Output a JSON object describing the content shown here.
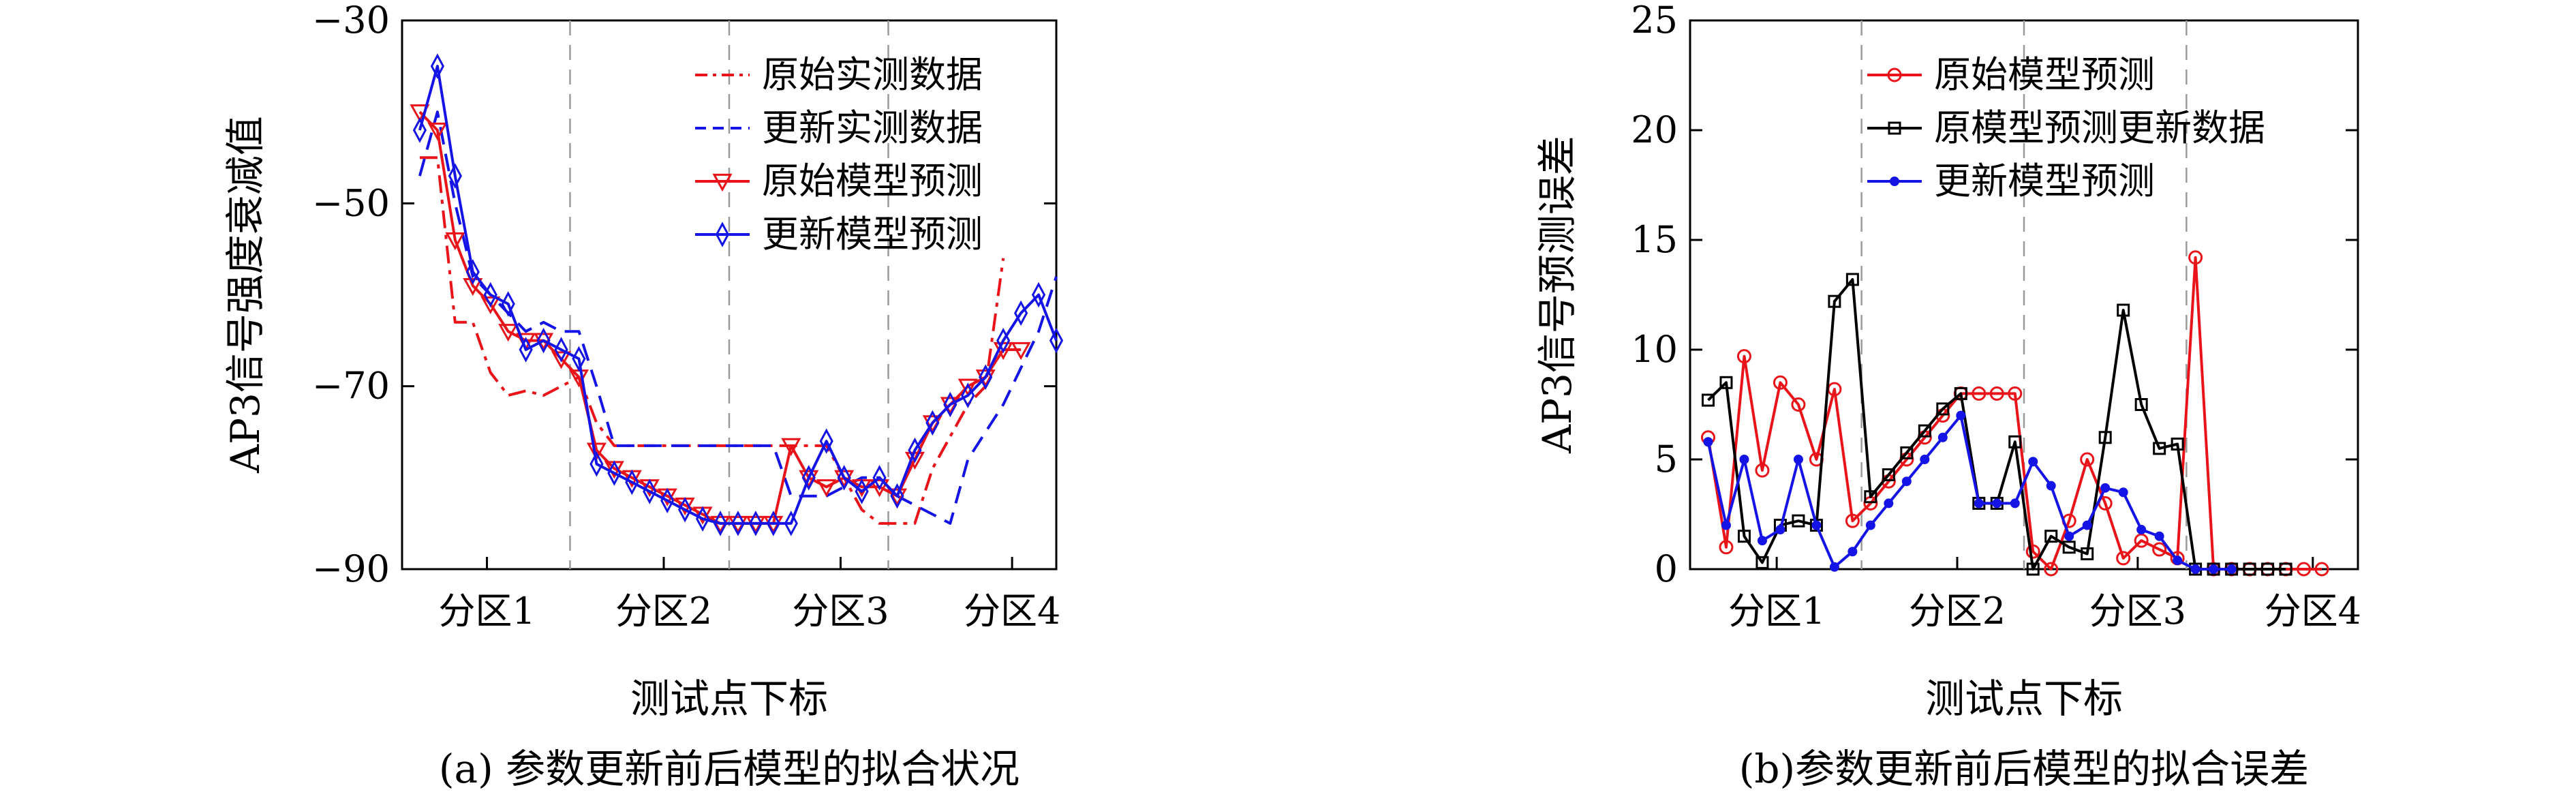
{
  "chart_data": [
    {
      "type": "line",
      "caption": "(a) 参数更新前后模型的拟合状况",
      "xlabel": "测试点下标",
      "ylabel": "AP3信号强度衰减值",
      "ylim": [
        -90,
        -30
      ],
      "yticks": [
        -30,
        -50,
        -70,
        -90
      ],
      "xlim": [
        0,
        37
      ],
      "zone_labels": [
        "分区1",
        "分区2",
        "分区3",
        "分区4"
      ],
      "zone_label_x": [
        4.8,
        14.8,
        24.8,
        34.5
      ],
      "zone_dividers": [
        9,
        18,
        27
      ],
      "legend_position": "top-right",
      "series": [
        {
          "name": "原始实测数据",
          "color": "#e8141a",
          "dash": "dashdot",
          "marker": "none",
          "x": [
            1,
            2,
            3,
            4,
            5,
            6,
            7,
            8,
            9,
            10,
            11,
            12,
            13,
            14,
            15,
            16,
            17,
            18,
            19,
            20,
            21,
            22,
            23,
            24,
            25,
            26,
            27,
            28,
            29,
            30,
            31,
            32,
            33,
            34
          ],
          "y": [
            -45,
            -45,
            -63,
            -63,
            -68.5,
            -71,
            -70.5,
            -71,
            -70,
            -69,
            -74,
            -76.5,
            -76.5,
            -76.5,
            -76.5,
            -76.5,
            -76.5,
            -76.5,
            -76.5,
            -76.5,
            -76.5,
            -76.5,
            -76.5,
            -76.5,
            -80,
            -83.5,
            -85,
            -85,
            -85,
            -79,
            -75.5,
            -72,
            -70,
            -56
          ]
        },
        {
          "name": "更新实测数据",
          "color": "#1414e6",
          "dash": "dashed",
          "marker": "none",
          "x": [
            1,
            2,
            3,
            4,
            5,
            6,
            7,
            8,
            9,
            10,
            11,
            12,
            13,
            14,
            15,
            16,
            17,
            18,
            19,
            20,
            21,
            22,
            23,
            24,
            25,
            26,
            27,
            28,
            29,
            30,
            31,
            32,
            33,
            34,
            35,
            36,
            37
          ],
          "y": [
            -47,
            -40,
            -50,
            -58,
            -60,
            -62,
            -64,
            -63,
            -64,
            -64,
            -70,
            -76.5,
            -76.5,
            -76.5,
            -76.5,
            -76.5,
            -76.5,
            -76.5,
            -76.5,
            -76.5,
            -76.5,
            -82,
            -82,
            -82,
            -81,
            -80,
            -80,
            -82,
            -83,
            -84,
            -85,
            -78,
            -75,
            -72,
            -68,
            -64,
            -58
          ]
        },
        {
          "name": "原始模型预测",
          "color": "#e8141a",
          "dash": "solid",
          "marker": "triangle-down",
          "x": [
            1,
            2,
            3,
            4,
            5,
            6,
            7,
            8,
            9,
            10,
            11,
            12,
            13,
            14,
            15,
            16,
            17,
            18,
            19,
            20,
            21,
            22,
            23,
            24,
            25,
            26,
            27,
            28,
            29,
            30,
            31,
            32,
            33,
            34,
            35
          ],
          "y": [
            -40,
            -42,
            -54,
            -59,
            -61,
            -64,
            -65,
            -65,
            -67,
            -69,
            -77,
            -79,
            -80,
            -81,
            -82,
            -83,
            -84,
            -85,
            -85,
            -85,
            -85,
            -76.5,
            -80,
            -81,
            -80,
            -81,
            -81,
            -82,
            -78,
            -74,
            -72,
            -70,
            -69,
            -66,
            -66
          ]
        },
        {
          "name": "更新模型预测",
          "color": "#1414e6",
          "dash": "solid",
          "marker": "diamond",
          "x": [
            1,
            2,
            3,
            4,
            5,
            6,
            7,
            8,
            9,
            10,
            11,
            12,
            13,
            14,
            15,
            16,
            17,
            18,
            19,
            20,
            21,
            22,
            23,
            24,
            25,
            26,
            27,
            28,
            29,
            30,
            31,
            32,
            33,
            34,
            35,
            36,
            37
          ],
          "y": [
            -42,
            -35,
            -47,
            -57.5,
            -60,
            -61,
            -66,
            -65,
            -66,
            -67,
            -78.5,
            -79.5,
            -80.5,
            -81.5,
            -82.5,
            -83.5,
            -84.5,
            -85,
            -85,
            -85,
            -85,
            -85,
            -80,
            -76,
            -80,
            -81.5,
            -80,
            -82,
            -77,
            -74,
            -72,
            -71,
            -69,
            -65,
            -62,
            -60,
            -65
          ]
        }
      ]
    },
    {
      "type": "line",
      "caption": "(b)参数更新前后模型的拟合误差",
      "xlabel": "测试点下标",
      "ylabel": "AP3信号预测误差",
      "ylim": [
        0,
        25
      ],
      "yticks": [
        0,
        5,
        10,
        15,
        20,
        25
      ],
      "xlim": [
        0,
        37
      ],
      "zone_labels": [
        "分区1",
        "分区2",
        "分区3",
        "分区4"
      ],
      "zone_label_x": [
        4.8,
        14.8,
        24.8,
        34.5
      ],
      "zone_dividers": [
        9,
        18,
        27
      ],
      "legend_position": "top-left",
      "series": [
        {
          "name": "原始模型预测",
          "color": "#e8141a",
          "marker": "circle",
          "x": [
            1,
            2,
            3,
            4,
            5,
            6,
            7,
            8,
            9,
            10,
            11,
            12,
            13,
            14,
            15,
            16,
            17,
            18,
            19,
            20,
            21,
            22,
            23,
            24,
            25,
            26,
            27,
            28,
            29,
            30,
            31,
            32,
            33,
            34,
            35
          ],
          "y": [
            6,
            1,
            9.7,
            4.5,
            8.5,
            7.5,
            5,
            8.2,
            2.2,
            3,
            4,
            5,
            6,
            7,
            8,
            8,
            8,
            8,
            0.8,
            0,
            2.2,
            5,
            3,
            0.5,
            1.3,
            0.9,
            0.5,
            14.2,
            0,
            0,
            0,
            0,
            0,
            0,
            0
          ]
        },
        {
          "name": "原模型预测更新数据",
          "color": "#000000",
          "marker": "square",
          "x": [
            1,
            2,
            3,
            4,
            5,
            6,
            7,
            8,
            9,
            10,
            11,
            12,
            13,
            14,
            15,
            16,
            17,
            18,
            19,
            20,
            21,
            22,
            23,
            24,
            25,
            26,
            27,
            28,
            29,
            30,
            31,
            32,
            33
          ],
          "y": [
            7.7,
            8.5,
            1.5,
            0.3,
            2,
            2.2,
            2,
            12.2,
            13.2,
            3.3,
            4.3,
            5.3,
            6.3,
            7.3,
            8,
            3,
            3,
            5.8,
            0,
            1.5,
            1,
            0.7,
            6,
            11.8,
            7.5,
            5.5,
            5.7,
            0,
            0,
            0,
            0,
            0,
            0
          ]
        },
        {
          "name": "更新模型预测",
          "color": "#1414e6",
          "marker": "star",
          "x": [
            1,
            2,
            3,
            4,
            5,
            6,
            7,
            8,
            9,
            10,
            11,
            12,
            13,
            14,
            15,
            16,
            17,
            18,
            19,
            20,
            21,
            22,
            23,
            24,
            25,
            26,
            27,
            28,
            29,
            30
          ],
          "y": [
            5.8,
            2,
            5,
            1.3,
            1.8,
            5,
            2,
            0.1,
            0.8,
            2,
            3,
            4,
            5,
            6,
            7,
            3,
            3,
            3,
            4.9,
            3.8,
            1.5,
            2,
            3.7,
            3.5,
            1.8,
            1.5,
            0.4,
            0,
            0,
            0
          ]
        }
      ]
    }
  ]
}
